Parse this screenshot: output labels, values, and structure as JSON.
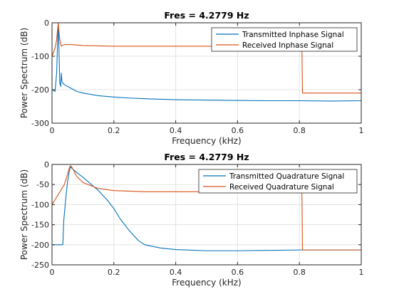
{
  "chart_data": [
    {
      "type": "line",
      "title": "Fres = 4.2779 Hz",
      "xlabel": "Frequency (kHz)",
      "ylabel": "Power Spectrum (dB)",
      "xlim": [
        0,
        1
      ],
      "ylim": [
        -300,
        0
      ],
      "xticks": [
        0,
        0.2,
        0.4,
        0.6,
        0.8,
        1
      ],
      "yticks": [
        0,
        -100,
        -200,
        -300
      ],
      "xtick_labels": [
        "0",
        "0.2",
        "0.4",
        "0.6",
        "0.8",
        "1"
      ],
      "ytick_labels": [
        "0",
        "-100",
        "-200",
        "-300"
      ],
      "grid": true,
      "legend_position": "top-right",
      "series": [
        {
          "name": "Transmitted Inphase Signal",
          "color": "#0072BD",
          "x": [
            0,
            0.01,
            0.015,
            0.018,
            0.02,
            0.022,
            0.025,
            0.028,
            0.03,
            0.032,
            0.035,
            0.04,
            0.06,
            0.08,
            0.1,
            0.15,
            0.2,
            0.25,
            0.3,
            0.4,
            0.5,
            0.6,
            0.7,
            0.8,
            0.9,
            1.0
          ],
          "y": [
            -200,
            -205,
            -150,
            -60,
            -3,
            -60,
            -180,
            -190,
            -150,
            -175,
            -180,
            -185,
            -195,
            -205,
            -210,
            -218,
            -222,
            -225,
            -227,
            -230,
            -231,
            -232,
            -233,
            -233,
            -234,
            -233
          ]
        },
        {
          "name": "Received Inphase Signal",
          "color": "#D95319",
          "x": [
            0,
            0.01,
            0.015,
            0.018,
            0.02,
            0.022,
            0.025,
            0.03,
            0.04,
            0.06,
            0.1,
            0.2,
            0.3,
            0.4,
            0.5,
            0.6,
            0.7,
            0.8,
            0.808,
            0.81,
            0.85,
            0.9,
            0.95,
            1.0
          ],
          "y": [
            -100,
            -75,
            -50,
            -20,
            0,
            -20,
            -50,
            -70,
            -65,
            -65,
            -68,
            -70,
            -70,
            -70,
            -70,
            -70,
            -70,
            -70,
            -70,
            -210,
            -210,
            -210,
            -210,
            -210
          ]
        }
      ]
    },
    {
      "type": "line",
      "title": "Fres = 4.2779 Hz",
      "xlabel": "Frequency (kHz)",
      "ylabel": "Power Spectrum (dB)",
      "xlim": [
        0,
        1
      ],
      "ylim": [
        -250,
        0
      ],
      "xticks": [
        0,
        0.2,
        0.4,
        0.6,
        0.8,
        1
      ],
      "yticks": [
        0,
        -50,
        -100,
        -150,
        -200,
        -250
      ],
      "xtick_labels": [
        "0",
        "0.2",
        "0.4",
        "0.6",
        "0.8",
        "1"
      ],
      "ytick_labels": [
        "0",
        "-50",
        "-100",
        "-150",
        "-200",
        "-250"
      ],
      "grid": true,
      "legend_position": "top-right",
      "series": [
        {
          "name": "Transmitted Quadrature Signal",
          "color": "#0072BD",
          "x": [
            0,
            0.035,
            0.038,
            0.045,
            0.05,
            0.055,
            0.06,
            0.065,
            0.08,
            0.1,
            0.12,
            0.15,
            0.18,
            0.2,
            0.22,
            0.25,
            0.28,
            0.3,
            0.35,
            0.4,
            0.5,
            0.6,
            0.7,
            0.8,
            0.9,
            1.0
          ],
          "y": [
            -200,
            -200,
            -140,
            -80,
            -45,
            -20,
            -5,
            -10,
            -20,
            -32,
            -45,
            -65,
            -90,
            -110,
            -135,
            -165,
            -190,
            -200,
            -208,
            -212,
            -215,
            -215,
            -214,
            -213,
            -213,
            -213
          ]
        },
        {
          "name": "Received Quadrature Signal",
          "color": "#D95319",
          "x": [
            0,
            0.04,
            0.05,
            0.055,
            0.06,
            0.065,
            0.07,
            0.08,
            0.1,
            0.15,
            0.2,
            0.3,
            0.4,
            0.5,
            0.6,
            0.7,
            0.8,
            0.808,
            0.81,
            0.85,
            0.9,
            0.95,
            1.0
          ],
          "y": [
            -100,
            -50,
            -25,
            -10,
            -3,
            -8,
            -15,
            -30,
            -45,
            -60,
            -65,
            -68,
            -68,
            -68,
            -68,
            -68,
            -68,
            -68,
            -213,
            -213,
            -213,
            -213,
            -213
          ]
        }
      ]
    }
  ]
}
